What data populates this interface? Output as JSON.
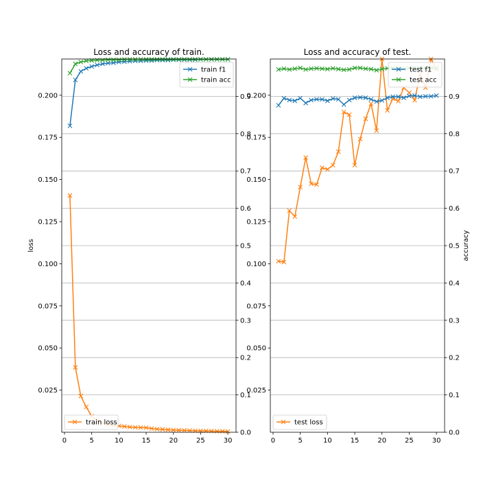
{
  "chart_data": [
    {
      "type": "line",
      "title": "Loss and accuracy of train.",
      "xlabel": "",
      "ylabel_left": "loss",
      "ylabel_right": "",
      "x_ticks": [
        0,
        5,
        10,
        15,
        20,
        25,
        30
      ],
      "left_ticks": [
        0.025,
        0.05,
        0.075,
        0.1,
        0.125,
        0.15,
        0.175,
        0.2
      ],
      "left_tick_labels": [
        "0.025",
        "0.050",
        "0.075",
        "0.100",
        "0.125",
        "0.150",
        "0.175",
        "0.200"
      ],
      "right_ticks": [
        0,
        0.1,
        0.2,
        0.3,
        0.4,
        0.5,
        0.6,
        0.7,
        0.8,
        0.9
      ],
      "right_tick_labels": [
        "0.0",
        "0.1",
        "0.2",
        "0.3",
        "0.4",
        "0.5",
        "0.6",
        "0.7",
        "0.8",
        "0.9"
      ],
      "xlim": [
        -0.5,
        31.5
      ],
      "ylim_left": [
        0,
        0.2215
      ],
      "ylim_right": [
        0,
        1.0
      ],
      "grid": "horizontal lines at right-axis ticks",
      "x": [
        1,
        2,
        3,
        4,
        5,
        6,
        7,
        8,
        9,
        10,
        11,
        12,
        13,
        14,
        15,
        16,
        17,
        18,
        19,
        20,
        21,
        22,
        23,
        24,
        25,
        26,
        27,
        28,
        29,
        30
      ],
      "series": [
        {
          "name": "train loss",
          "axis": "left",
          "color": "#ff7f0e",
          "marker": "x",
          "values": [
            0.1405,
            0.0385,
            0.0215,
            0.015,
            0.0095,
            0.007,
            0.0055,
            0.0045,
            0.004,
            0.0037,
            0.0034,
            0.0031,
            0.0029,
            0.0028,
            0.0027,
            0.0022,
            0.0019,
            0.0017,
            0.0015,
            0.0013,
            0.0012,
            0.0011,
            0.001,
            0.0009,
            0.0008,
            0.0008,
            0.0007,
            0.0006,
            0.0006,
            0.0005
          ]
        },
        {
          "name": "train f1",
          "axis": "right",
          "color": "#1f77b4",
          "marker": "x",
          "values": [
            0.821,
            0.944,
            0.967,
            0.975,
            0.98,
            0.984,
            0.987,
            0.989,
            0.99,
            0.992,
            0.993,
            0.994,
            0.995,
            0.995,
            0.996,
            0.996,
            0.997,
            0.997,
            0.997,
            0.998,
            0.998,
            0.998,
            0.998,
            0.998,
            0.999,
            0.999,
            0.999,
            0.999,
            0.999,
            0.999
          ]
        },
        {
          "name": "train acc",
          "axis": "right",
          "color": "#2ca02c",
          "marker": "x",
          "values": [
            0.962,
            0.987,
            0.992,
            0.995,
            0.996,
            0.997,
            0.997,
            0.998,
            0.998,
            0.998,
            0.999,
            0.999,
            0.999,
            0.999,
            0.999,
            0.999,
            0.999,
            0.999,
            0.999,
            0.999,
            0.999,
            0.999,
            0.999,
            0.999,
            0.999,
            0.999,
            0.999,
            0.999,
            0.999,
            0.999
          ]
        }
      ],
      "legend_upper": {
        "placement": "upper-right",
        "entries": [
          "train f1",
          "train acc"
        ]
      },
      "legend_lower": {
        "placement": "lower-left",
        "entries": [
          "train loss"
        ]
      }
    },
    {
      "type": "line",
      "title": "Loss and accuracy of test.",
      "xlabel": "",
      "ylabel_left": "",
      "ylabel_right": "accuracy",
      "x_ticks": [
        0,
        5,
        10,
        15,
        20,
        25,
        30
      ],
      "left_ticks": [
        0.025,
        0.05,
        0.075,
        0.1,
        0.125,
        0.15,
        0.175,
        0.2
      ],
      "left_tick_labels": [
        "0.025",
        "0.050",
        "0.075",
        "0.100",
        "0.125",
        "0.150",
        "0.175",
        "0.200"
      ],
      "right_ticks": [
        0,
        0.1,
        0.2,
        0.3,
        0.4,
        0.5,
        0.6,
        0.7,
        0.8,
        0.9
      ],
      "right_tick_labels": [
        "0.0",
        "0.1",
        "0.2",
        "0.3",
        "0.4",
        "0.5",
        "0.6",
        "0.7",
        "0.8",
        "0.9"
      ],
      "xlim": [
        -0.5,
        31.5
      ],
      "ylim_left": [
        0,
        0.2215
      ],
      "ylim_right": [
        0,
        1.0
      ],
      "grid": "horizontal lines at right-axis ticks",
      "x": [
        1,
        2,
        3,
        4,
        5,
        6,
        7,
        8,
        9,
        10,
        11,
        12,
        13,
        14,
        15,
        16,
        17,
        18,
        19,
        20,
        21,
        22,
        23,
        24,
        25,
        26,
        27,
        28,
        29,
        30
      ],
      "series": [
        {
          "name": "test loss",
          "axis": "left",
          "color": "#ff7f0e",
          "marker": "x",
          "values": [
            0.1015,
            0.101,
            0.1315,
            0.128,
            0.1455,
            0.163,
            0.1475,
            0.147,
            0.157,
            0.156,
            0.1585,
            0.1665,
            0.19,
            0.1885,
            0.1585,
            0.174,
            0.186,
            0.195,
            0.179,
            0.2215,
            0.191,
            0.198,
            0.1965,
            0.2045,
            0.2015,
            0.197,
            0.2125,
            0.2045,
            0.2215,
            0.2155
          ]
        },
        {
          "name": "test f1",
          "axis": "right",
          "color": "#1f77b4",
          "marker": "x",
          "values": [
            0.876,
            0.895,
            0.89,
            0.888,
            0.895,
            0.882,
            0.89,
            0.892,
            0.892,
            0.888,
            0.894,
            0.892,
            0.878,
            0.89,
            0.896,
            0.897,
            0.896,
            0.892,
            0.886,
            0.889,
            0.896,
            0.899,
            0.899,
            0.896,
            0.901,
            0.902,
            0.899,
            0.9,
            0.9,
            0.902
          ]
        },
        {
          "name": "test acc",
          "axis": "right",
          "color": "#2ca02c",
          "marker": "x",
          "values": [
            0.972,
            0.974,
            0.972,
            0.974,
            0.976,
            0.972,
            0.974,
            0.975,
            0.974,
            0.973,
            0.975,
            0.973,
            0.971,
            0.972,
            0.976,
            0.976,
            0.974,
            0.973,
            0.97,
            0.973,
            0.975,
            0.976,
            0.975,
            0.974,
            0.976,
            0.976,
            0.975,
            0.976,
            0.976,
            0.976
          ]
        }
      ],
      "legend_upper": {
        "placement": "upper-right",
        "entries": [
          "test f1",
          "test acc"
        ]
      },
      "legend_lower": {
        "placement": "lower-left",
        "entries": [
          "test loss"
        ]
      }
    }
  ]
}
